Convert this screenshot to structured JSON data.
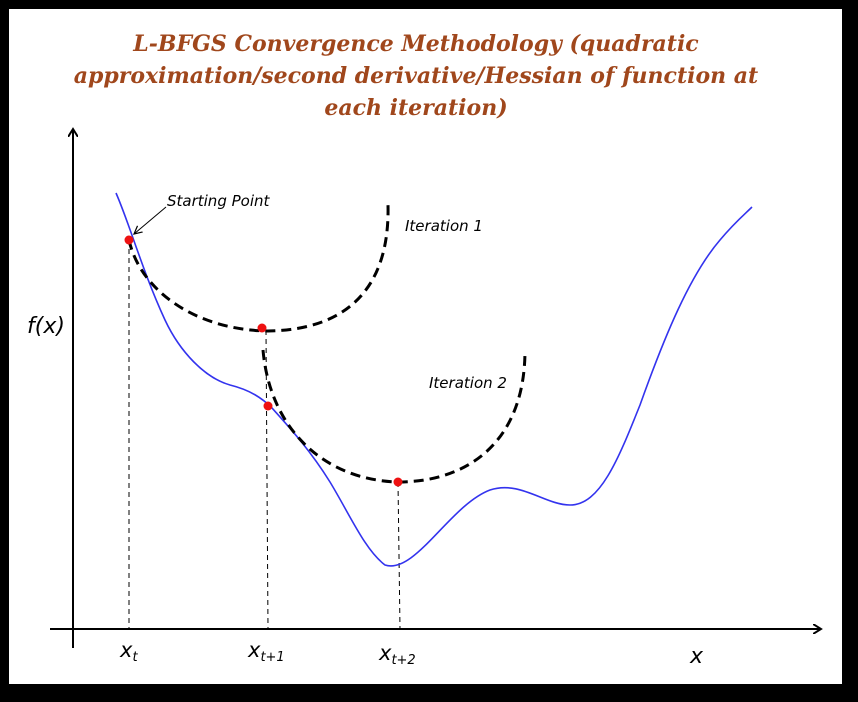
{
  "title": "L-BFGS Convergence Methodology (quadratic approximation/second derivative/Hessian of function at each iteration)",
  "labels": {
    "starting_point": "Starting Point",
    "iteration_1": "Iteration 1",
    "iteration_2": "Iteration 2",
    "y_axis": "f(x)",
    "x_axis": "x"
  },
  "ticks": [
    {
      "base": "x",
      "sub": "t"
    },
    {
      "base": "x",
      "sub": "t+1"
    },
    {
      "base": "x",
      "sub": "t+2"
    }
  ],
  "colors": {
    "title": "#a0471c",
    "curve": "#3333ee",
    "points": "#ee1111",
    "dashed": "#000000",
    "frame": "#000000"
  }
}
